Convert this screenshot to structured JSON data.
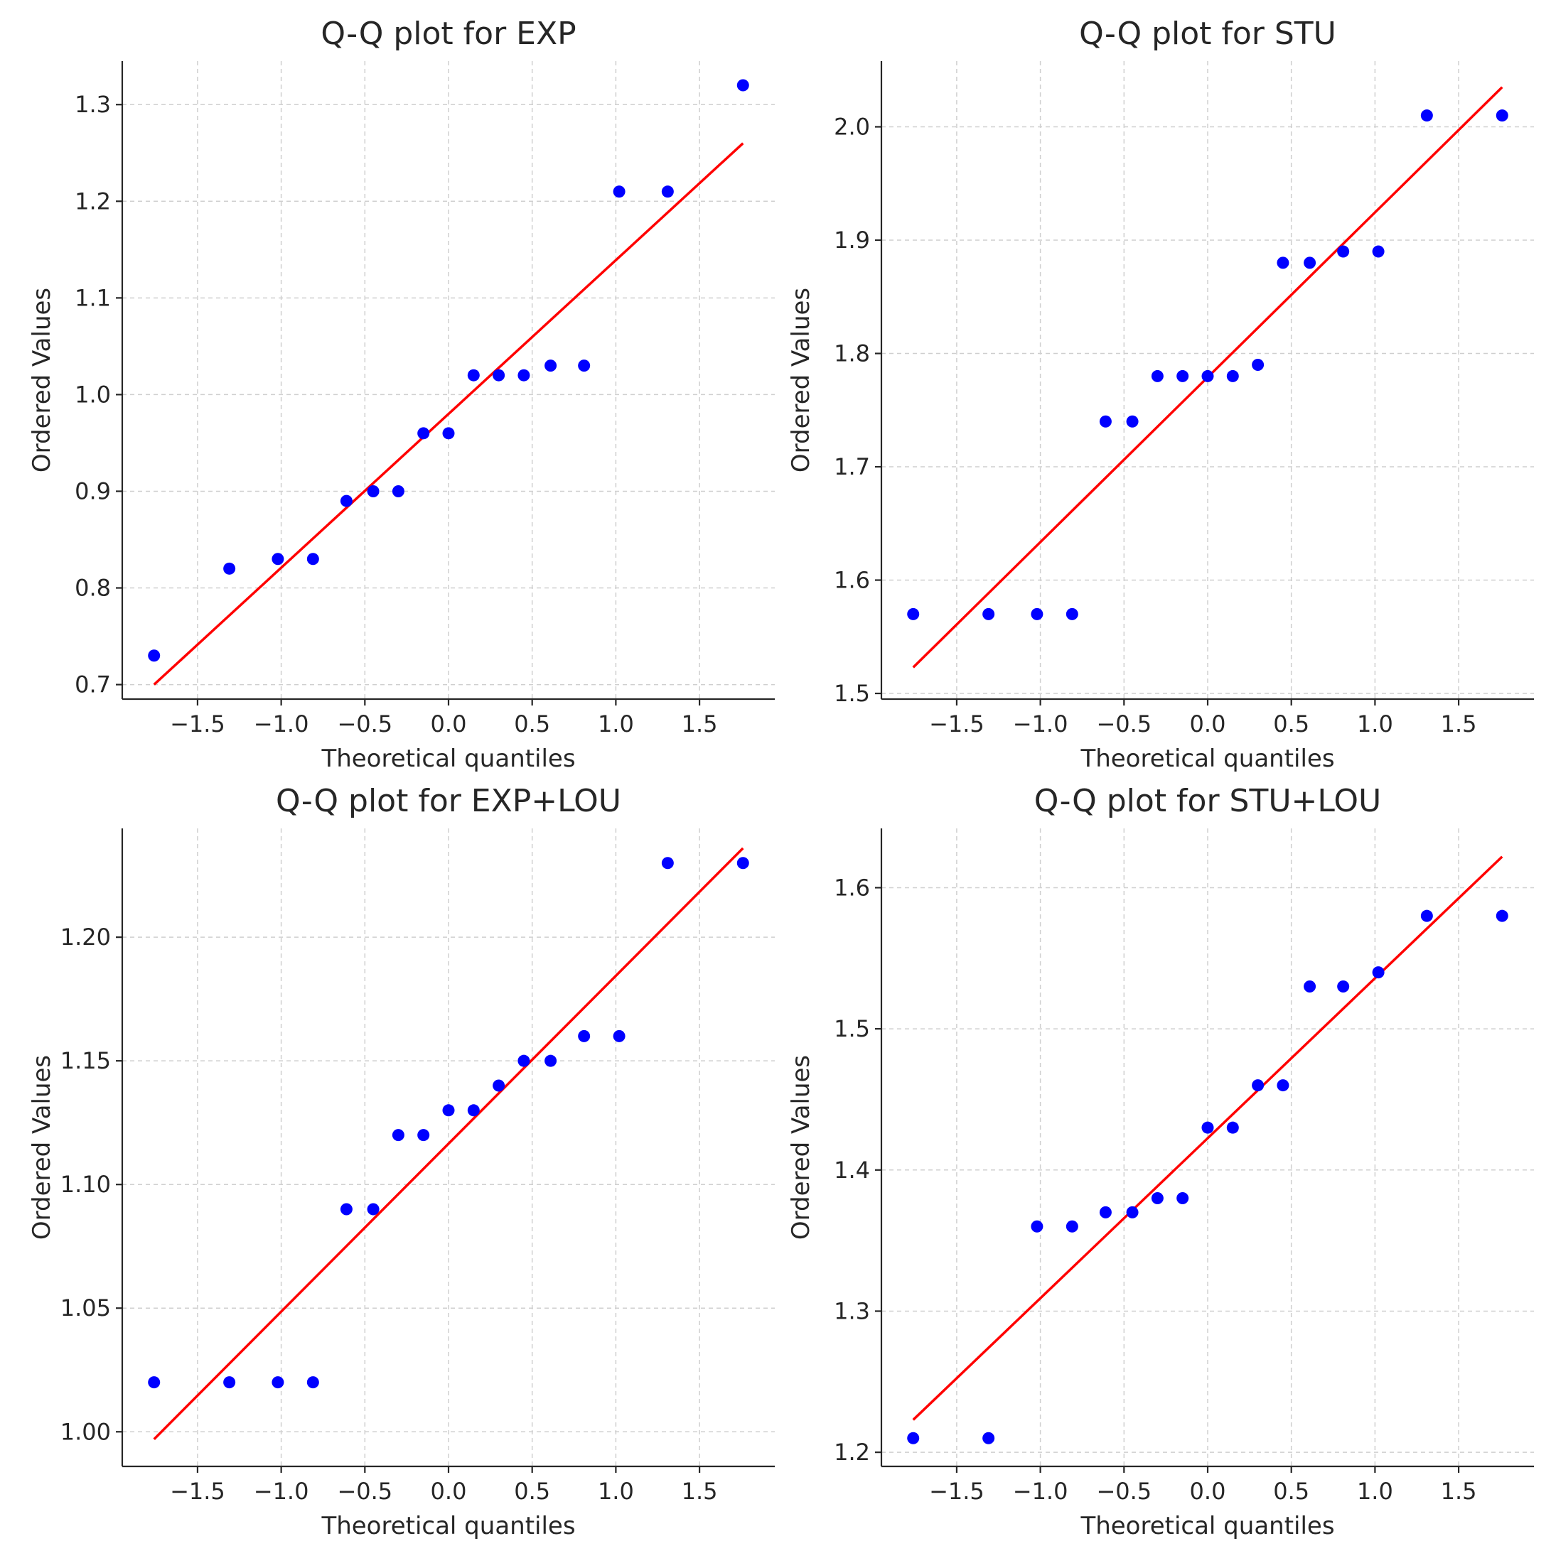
{
  "colors": {
    "points": "#0000ff",
    "fit_line": "#ff0000",
    "grid": "#cfcfcf",
    "axes": "#262626"
  },
  "chart_data": [
    {
      "type": "scatter",
      "title": "Q-Q plot for EXP",
      "xlabel": "Theoretical quantiles",
      "ylabel": "Ordered Values",
      "xlim": [
        -1.95,
        1.95
      ],
      "ylim": [
        0.685,
        1.345
      ],
      "xticks": [
        -1.5,
        -1.0,
        -0.5,
        0.0,
        0.5,
        1.0,
        1.5
      ],
      "xtick_labels": [
        "−1.5",
        "−1.0",
        "−0.5",
        "0.0",
        "0.5",
        "1.0",
        "1.5"
      ],
      "yticks": [
        0.7,
        0.8,
        0.9,
        1.0,
        1.1,
        1.2,
        1.3
      ],
      "ytick_labels": [
        "0.7",
        "0.8",
        "0.9",
        "1.0",
        "1.1",
        "1.2",
        "1.3"
      ],
      "grid": true,
      "x": [
        -1.76,
        -1.31,
        -1.02,
        -0.81,
        -0.61,
        -0.45,
        -0.3,
        -0.15,
        0.0,
        0.15,
        0.3,
        0.45,
        0.61,
        0.81,
        1.02,
        1.31,
        1.76
      ],
      "y": [
        0.73,
        0.82,
        0.83,
        0.83,
        0.89,
        0.9,
        0.9,
        0.96,
        0.96,
        1.02,
        1.02,
        1.02,
        1.03,
        1.03,
        1.21,
        1.21,
        1.32
      ],
      "fit_line": {
        "x": [
          -1.76,
          1.76
        ],
        "y": [
          0.7,
          1.26
        ]
      }
    },
    {
      "type": "scatter",
      "title": "Q-Q plot for STU",
      "xlabel": "Theoretical quantiles",
      "ylabel": "Ordered Values",
      "xlim": [
        -1.95,
        1.95
      ],
      "ylim": [
        1.495,
        2.058
      ],
      "xticks": [
        -1.5,
        -1.0,
        -0.5,
        0.0,
        0.5,
        1.0,
        1.5
      ],
      "xtick_labels": [
        "−1.5",
        "−1.0",
        "−0.5",
        "0.0",
        "0.5",
        "1.0",
        "1.5"
      ],
      "yticks": [
        1.5,
        1.6,
        1.7,
        1.8,
        1.9,
        2.0
      ],
      "ytick_labels": [
        "1.5",
        "1.6",
        "1.7",
        "1.8",
        "1.9",
        "2.0"
      ],
      "grid": true,
      "x": [
        -1.76,
        -1.31,
        -1.02,
        -0.81,
        -0.61,
        -0.45,
        -0.3,
        -0.15,
        0.0,
        0.15,
        0.3,
        0.45,
        0.61,
        0.81,
        1.02,
        1.31,
        1.76
      ],
      "y": [
        1.57,
        1.57,
        1.57,
        1.57,
        1.74,
        1.74,
        1.78,
        1.78,
        1.78,
        1.78,
        1.79,
        1.88,
        1.88,
        1.89,
        1.89,
        2.01,
        2.01
      ],
      "fit_line": {
        "x": [
          -1.76,
          1.76
        ],
        "y": [
          1.523,
          2.035
        ]
      }
    },
    {
      "type": "scatter",
      "title": "Q-Q plot for EXP+LOU",
      "xlabel": "Theoretical quantiles",
      "ylabel": "Ordered Values",
      "xlim": [
        -1.95,
        1.95
      ],
      "ylim": [
        0.986,
        1.244
      ],
      "xticks": [
        -1.5,
        -1.0,
        -0.5,
        0.0,
        0.5,
        1.0,
        1.5
      ],
      "xtick_labels": [
        "−1.5",
        "−1.0",
        "−0.5",
        "0.0",
        "0.5",
        "1.0",
        "1.5"
      ],
      "yticks": [
        1.0,
        1.05,
        1.1,
        1.15,
        1.2
      ],
      "ytick_labels": [
        "1.00",
        "1.05",
        "1.10",
        "1.15",
        "1.20"
      ],
      "grid": true,
      "x": [
        -1.76,
        -1.31,
        -1.02,
        -0.81,
        -0.61,
        -0.45,
        -0.3,
        -0.15,
        0.0,
        0.15,
        0.3,
        0.45,
        0.61,
        0.81,
        1.02,
        1.31,
        1.76
      ],
      "y": [
        1.02,
        1.02,
        1.02,
        1.02,
        1.09,
        1.09,
        1.12,
        1.12,
        1.13,
        1.13,
        1.14,
        1.15,
        1.15,
        1.16,
        1.16,
        1.23,
        1.23
      ],
      "fit_line": {
        "x": [
          -1.76,
          1.76
        ],
        "y": [
          0.997,
          1.236
        ]
      }
    },
    {
      "type": "scatter",
      "title": "Q-Q plot for STU+LOU",
      "xlabel": "Theoretical quantiles",
      "ylabel": "Ordered Values",
      "xlim": [
        -1.95,
        1.95
      ],
      "ylim": [
        1.19,
        1.642
      ],
      "xticks": [
        -1.5,
        -1.0,
        -0.5,
        0.0,
        0.5,
        1.0,
        1.5
      ],
      "xtick_labels": [
        "−1.5",
        "−1.0",
        "−0.5",
        "0.0",
        "0.5",
        "1.0",
        "1.5"
      ],
      "yticks": [
        1.2,
        1.3,
        1.4,
        1.5,
        1.6
      ],
      "ytick_labels": [
        "1.2",
        "1.3",
        "1.4",
        "1.5",
        "1.6"
      ],
      "grid": true,
      "x": [
        -1.76,
        -1.31,
        -1.02,
        -0.81,
        -0.61,
        -0.45,
        -0.3,
        -0.15,
        0.0,
        0.15,
        0.3,
        0.45,
        0.61,
        0.81,
        1.02,
        1.31,
        1.76
      ],
      "y": [
        1.21,
        1.21,
        1.36,
        1.36,
        1.37,
        1.37,
        1.38,
        1.38,
        1.43,
        1.43,
        1.46,
        1.46,
        1.53,
        1.53,
        1.54,
        1.58,
        1.58
      ],
      "fit_line": {
        "x": [
          -1.76,
          1.76
        ],
        "y": [
          1.223,
          1.622
        ]
      }
    }
  ]
}
